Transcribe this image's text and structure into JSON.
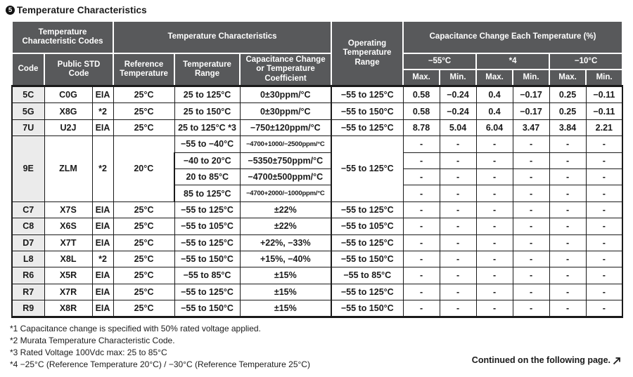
{
  "section": {
    "number": "5",
    "title": "Temperature Characteristics"
  },
  "colors": {
    "header_bg": "#58595B",
    "header_text": "#FFFFFF",
    "code_column_bg": "#EBEBEB",
    "body_border": "#1A1A1A",
    "text": "#1A1A1A"
  },
  "table": {
    "headers": {
      "temp_char_codes": "Temperature Characteristic Codes",
      "code": "Code",
      "public_std_code": "Public STD Code",
      "temp_characteristics": "Temperature Characteristics",
      "reference_temperature": "Reference Temperature",
      "temperature_range": "Temperature Range",
      "cap_change_or_coeff": "Capacitance Change or Temperature Coefficient",
      "operating_temp_range": "Operating Temperature Range",
      "cap_change_each_temp": "Capacitance Change Each Temperature (%)",
      "temp_minus55": "−55°C",
      "temp_star4": "*4",
      "temp_minus10": "−10°C",
      "max": "Max.",
      "min": "Min."
    },
    "rows": [
      {
        "code": "5C",
        "std": "C0G",
        "std_src": "EIA",
        "ref": "25°C",
        "range": "25 to 125°C",
        "change": "0±30ppm/°C",
        "op": "−55 to 125°C",
        "vals": [
          "0.58",
          "−0.24",
          "0.4",
          "−0.17",
          "0.25",
          "−0.11"
        ]
      },
      {
        "code": "5G",
        "std": "X8G",
        "std_src": "*2",
        "ref": "25°C",
        "range": "25 to 150°C",
        "change": "0±30ppm/°C",
        "op": "−55 to 150°C",
        "vals": [
          "0.58",
          "−0.24",
          "0.4",
          "−0.17",
          "0.25",
          "−0.11"
        ]
      },
      {
        "code": "7U",
        "std": "U2J",
        "std_src": "EIA",
        "ref": "25°C",
        "range": "25 to 125°C *3",
        "change": "−750±120ppm/°C",
        "op": "−55 to 125°C",
        "vals": [
          "8.78",
          "5.04",
          "6.04",
          "3.47",
          "3.84",
          "2.21"
        ]
      },
      {
        "code": "9E",
        "std": "ZLM",
        "std_src": "*2",
        "ref": "20°C",
        "op": "−55 to 125°C",
        "sub_rows": [
          {
            "range": "−55 to −40°C",
            "change": "−4700+1000/−2500ppm/°C",
            "vals": [
              "-",
              "-",
              "-",
              "-",
              "-",
              "-"
            ]
          },
          {
            "range": "−40 to 20°C",
            "change": "−5350±750ppm/°C",
            "vals": [
              "-",
              "-",
              "-",
              "-",
              "-",
              "-"
            ]
          },
          {
            "range": "20 to 85°C",
            "change": "−4700±500ppm/°C",
            "vals": [
              "-",
              "-",
              "-",
              "-",
              "-",
              "-"
            ]
          },
          {
            "range": "85 to 125°C",
            "change": "−4700+2000/−1000ppm/°C",
            "vals": [
              "-",
              "-",
              "-",
              "-",
              "-",
              "-"
            ]
          }
        ]
      },
      {
        "code": "C7",
        "std": "X7S",
        "std_src": "EIA",
        "ref": "25°C",
        "range": "−55 to 125°C",
        "change": "±22%",
        "op": "−55 to 125°C",
        "vals": [
          "-",
          "-",
          "-",
          "-",
          "-",
          "-"
        ]
      },
      {
        "code": "C8",
        "std": "X6S",
        "std_src": "EIA",
        "ref": "25°C",
        "range": "−55 to 105°C",
        "change": "±22%",
        "op": "−55 to 105°C",
        "vals": [
          "-",
          "-",
          "-",
          "-",
          "-",
          "-"
        ]
      },
      {
        "code": "D7",
        "std": "X7T",
        "std_src": "EIA",
        "ref": "25°C",
        "range": "−55 to 125°C",
        "change": "+22%, −33%",
        "op": "−55 to 125°C",
        "vals": [
          "-",
          "-",
          "-",
          "-",
          "-",
          "-"
        ]
      },
      {
        "code": "L8",
        "std": "X8L",
        "std_src": "*2",
        "ref": "25°C",
        "range": "−55 to 150°C",
        "change": "+15%, −40%",
        "op": "−55 to 150°C",
        "vals": [
          "-",
          "-",
          "-",
          "-",
          "-",
          "-"
        ]
      },
      {
        "code": "R6",
        "std": "X5R",
        "std_src": "EIA",
        "ref": "25°C",
        "range": "−55 to 85°C",
        "change": "±15%",
        "op": "−55 to 85°C",
        "vals": [
          "-",
          "-",
          "-",
          "-",
          "-",
          "-"
        ]
      },
      {
        "code": "R7",
        "std": "X7R",
        "std_src": "EIA",
        "ref": "25°C",
        "range": "−55 to 125°C",
        "change": "±15%",
        "op": "−55 to 125°C",
        "vals": [
          "-",
          "-",
          "-",
          "-",
          "-",
          "-"
        ]
      },
      {
        "code": "R9",
        "std": "X8R",
        "std_src": "EIA",
        "ref": "25°C",
        "range": "−55 to 150°C",
        "change": "±15%",
        "op": "−55 to 150°C",
        "vals": [
          "-",
          "-",
          "-",
          "-",
          "-",
          "-"
        ]
      }
    ]
  },
  "footnotes": [
    "*1 Capacitance change is specified with 50% rated voltage applied.",
    "*2 Murata Temperature Characteristic Code.",
    "*3 Rated Voltage 100Vdc max: 25 to 85°C",
    "*4 −25°C (Reference Temperature 20°C) / −30°C (Reference Temperature 25°C)"
  ],
  "continued": {
    "label": "Continued on the following page."
  }
}
